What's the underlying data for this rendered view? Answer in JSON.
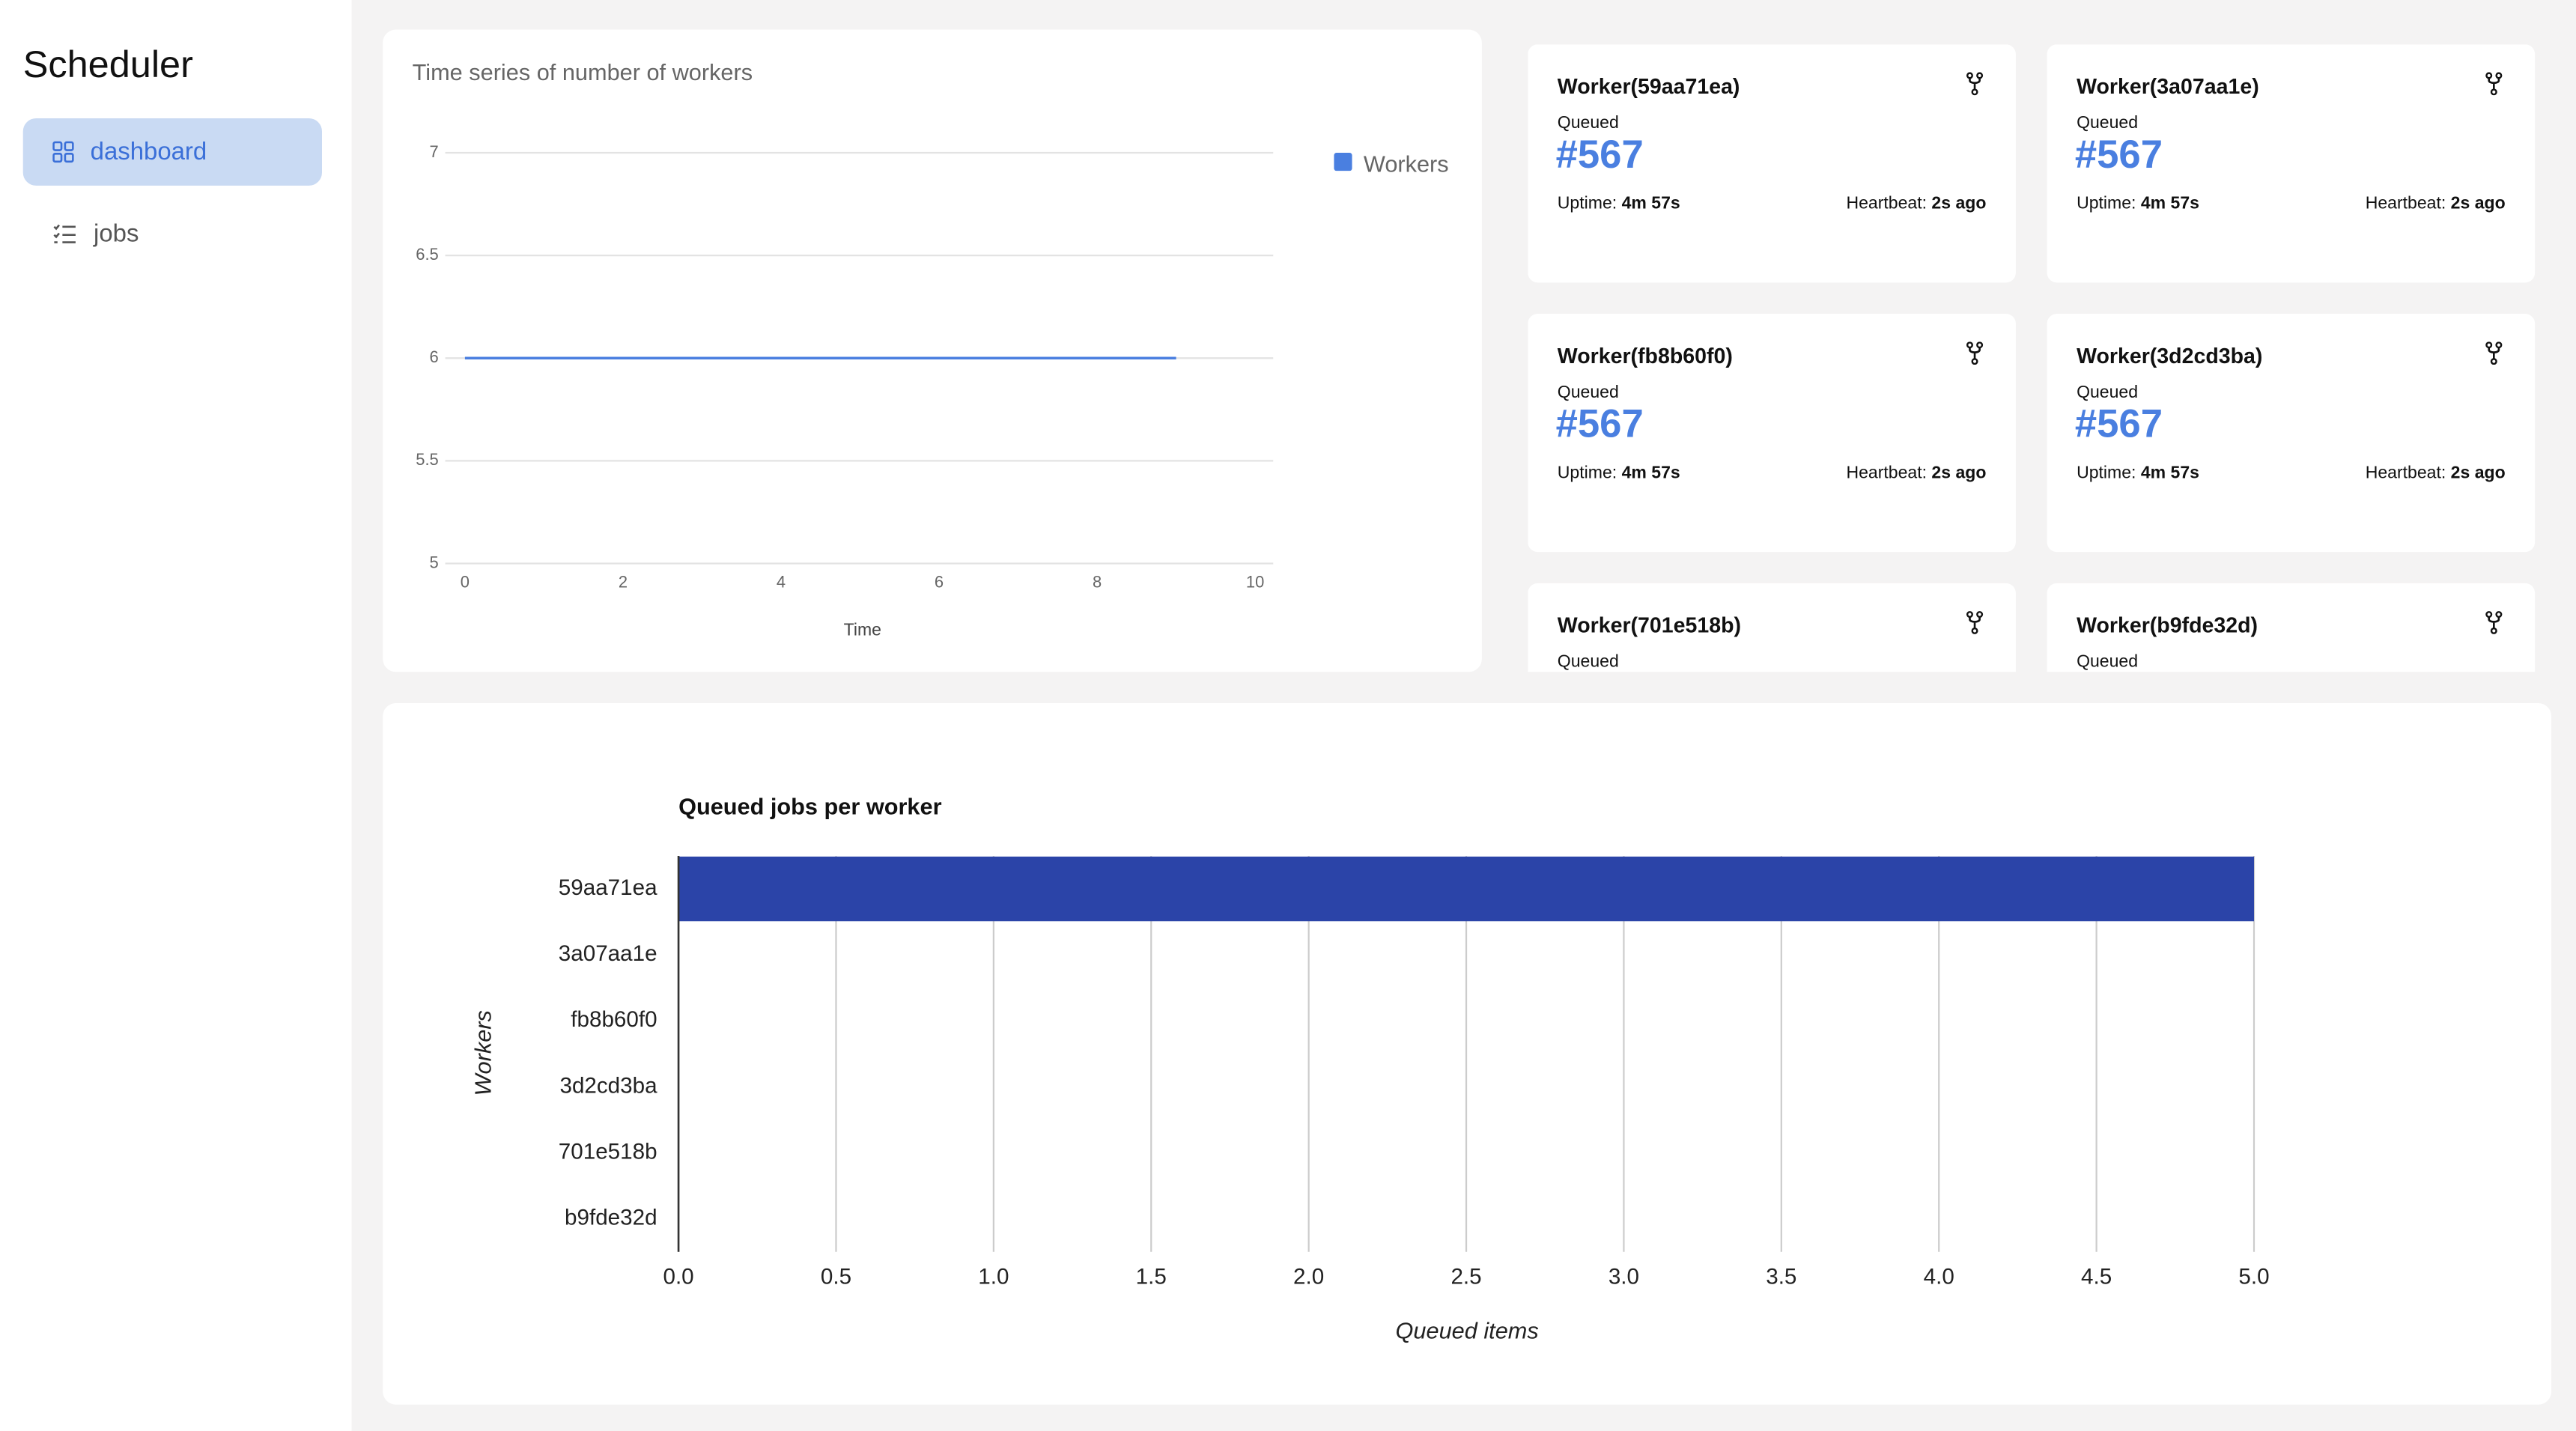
{
  "app_title": "Scheduler",
  "nav": [
    {
      "label": "dashboard",
      "active": true
    },
    {
      "label": "jobs",
      "active": false
    }
  ],
  "workers": [
    {
      "name": "Worker(59aa71ea)",
      "status": "Queued",
      "job": "#567",
      "uptime_label": "Uptime:",
      "uptime": "4m 57s",
      "heartbeat_label": "Heartbeat:",
      "heartbeat": "2s ago"
    },
    {
      "name": "Worker(3a07aa1e)",
      "status": "Queued",
      "job": "#567",
      "uptime_label": "Uptime:",
      "uptime": "4m 57s",
      "heartbeat_label": "Heartbeat:",
      "heartbeat": "2s ago"
    },
    {
      "name": "Worker(fb8b60f0)",
      "status": "Queued",
      "job": "#567",
      "uptime_label": "Uptime:",
      "uptime": "4m 57s",
      "heartbeat_label": "Heartbeat:",
      "heartbeat": "2s ago"
    },
    {
      "name": "Worker(3d2cd3ba)",
      "status": "Queued",
      "job": "#567",
      "uptime_label": "Uptime:",
      "uptime": "4m 57s",
      "heartbeat_label": "Heartbeat:",
      "heartbeat": "2s ago"
    },
    {
      "name": "Worker(701e518b)",
      "status": "Queued"
    },
    {
      "name": "Worker(b9fde32d)",
      "status": "Queued"
    }
  ],
  "chart_data": [
    {
      "type": "line",
      "title": "Time series of number of workers",
      "x_label": "Time",
      "x": [
        0,
        1,
        2,
        3,
        4,
        5,
        6,
        7,
        8,
        9
      ],
      "series": [
        {
          "name": "Workers",
          "color": "#4a7fe0",
          "values": [
            6,
            6,
            6,
            6,
            6,
            6,
            6,
            6,
            6,
            6
          ]
        }
      ],
      "xlim": [
        0,
        10
      ],
      "xticks": [
        0,
        2,
        4,
        6,
        8,
        10
      ],
      "ylim": [
        5,
        7
      ],
      "yticks": [
        5,
        5.5,
        6,
        6.5,
        7
      ],
      "grid": true,
      "legend": "right"
    },
    {
      "type": "hbar",
      "title": "Queued jobs per worker",
      "x_label": "Queued items",
      "y_label": "Workers",
      "categories": [
        "59aa71ea",
        "3a07aa1e",
        "fb8b60f0",
        "3d2cd3ba",
        "701e518b",
        "b9fde32d"
      ],
      "values": [
        5,
        0,
        0,
        0,
        0,
        0
      ],
      "color": "#2b44a8",
      "xlim": [
        0,
        5
      ],
      "xticks": [
        {
          "value": 0,
          "label": "0.0"
        },
        {
          "value": 0.5,
          "label": "0.5"
        },
        {
          "value": 1,
          "label": "1.0"
        },
        {
          "value": 1.5,
          "label": "1.5"
        },
        {
          "value": 2,
          "label": "2.0"
        },
        {
          "value": 2.5,
          "label": "2.5"
        },
        {
          "value": 3,
          "label": "3.0"
        },
        {
          "value": 3.5,
          "label": "3.5"
        },
        {
          "value": 4,
          "label": "4.0"
        },
        {
          "value": 4.5,
          "label": "4.5"
        },
        {
          "value": 5,
          "label": "5.0"
        }
      ],
      "grid": true
    }
  ]
}
